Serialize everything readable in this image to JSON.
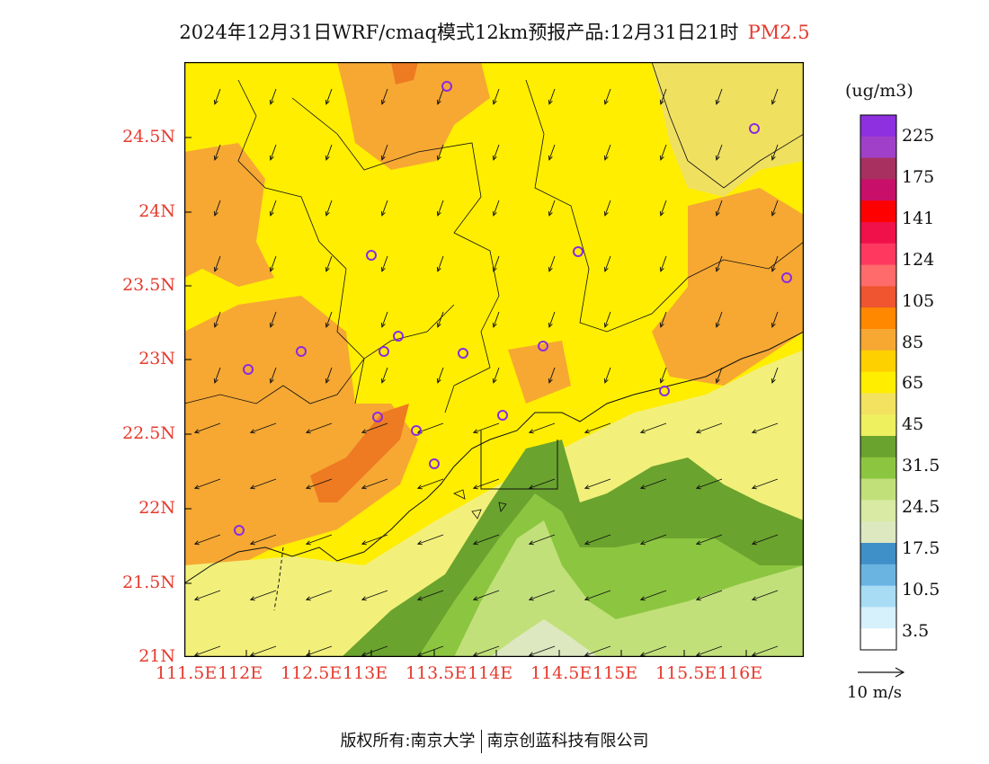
{
  "title": {
    "text": "2024年12月31日WRF/cmaq模式12km预报产品:12月31日21时",
    "pollutant": "PM2.5"
  },
  "map": {
    "lon_ticks": [
      "111.5E",
      "112E",
      "112.5E",
      "113E",
      "113.5E",
      "114E",
      "114.5E",
      "115E",
      "115.5E",
      "116E"
    ],
    "lat_ticks": [
      "24.5N",
      "24N",
      "23.5N",
      "23N",
      "22.5N",
      "22N",
      "21.5N",
      "21N"
    ]
  },
  "colorbar": {
    "unit": "(ug/m3)",
    "labels": [
      "225",
      "175",
      "141",
      "124",
      "105",
      "85",
      "65",
      "45",
      "31.5",
      "24.5",
      "17.5",
      "10.5",
      "3.5"
    ],
    "colors_top_to_bottom": [
      "#8e30e0",
      "#a040c8",
      "#a83060",
      "#c8106a",
      "#ff0000",
      "#f0104a",
      "#ff3860",
      "#ff6a6a",
      "#ee5530",
      "#ff8800",
      "#f6a833",
      "#ffd000",
      "#ffee00",
      "#f2e260",
      "#eef060",
      "#6aa32e",
      "#8cc640",
      "#c2e07a",
      "#d8eaa4",
      "#dde8c0",
      "#3f90c8",
      "#6ab4e2",
      "#a8dcf4",
      "#d6f0fc",
      "#ffffff"
    ]
  },
  "wind_reference": {
    "label": "10 m/s"
  },
  "footer": {
    "left": "版权所有:南京大学",
    "right": "南京创蓝科技有限公司"
  },
  "colors": {
    "accent_red": "#e63a2e",
    "field_yellow": "#ffee00",
    "field_orange": "#f6a833",
    "field_dark_orange": "#ee7a22",
    "field_light_yellow": "#f2f07a",
    "field_dark_green": "#6aa32e",
    "field_green": "#8cc640",
    "field_light_green": "#c2e07a",
    "field_pale": "#dde8c0",
    "station_purple": "#8a2be2"
  }
}
